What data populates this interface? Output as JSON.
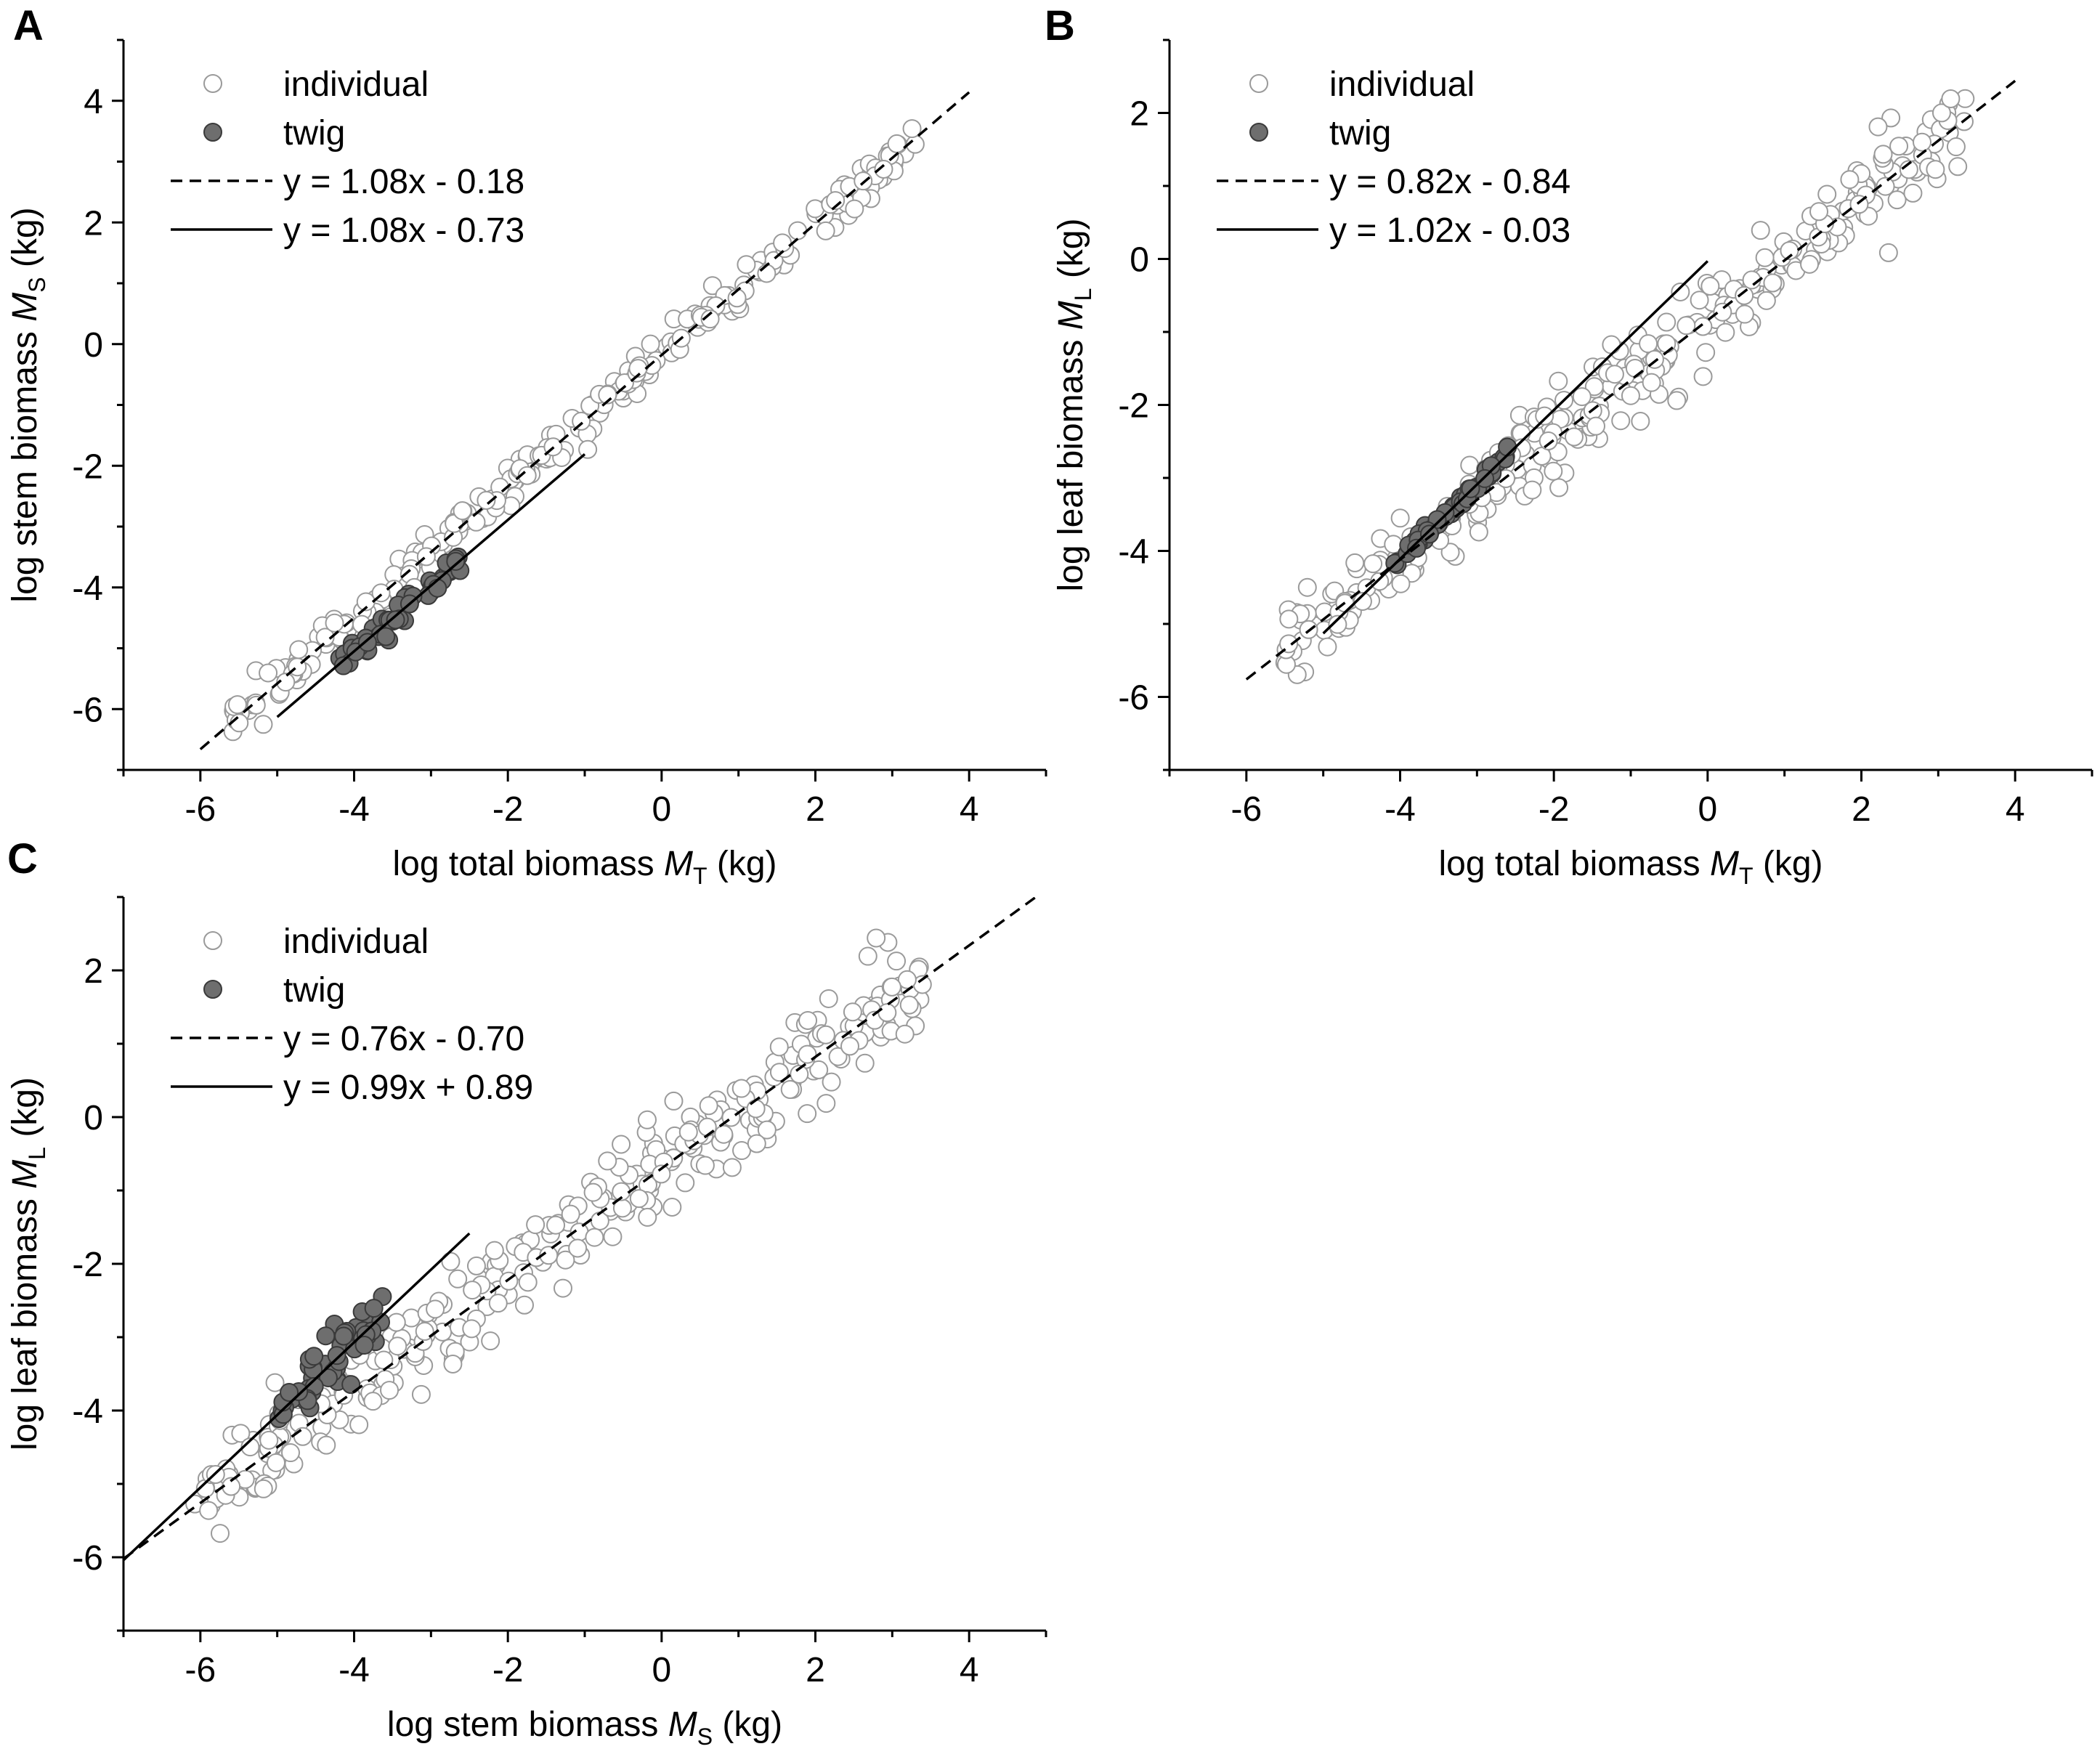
{
  "chart_data": [
    {
      "id": "A",
      "type": "scatter",
      "panel_label": "A",
      "xlabel": {
        "main": "log total biomass ",
        "var": "M",
        "sub": "T",
        "unit": " (kg)"
      },
      "ylabel": {
        "main": "log stem biomass ",
        "var": "M",
        "sub": "S",
        "unit": " (kg)"
      },
      "xlim": [
        -7,
        5
      ],
      "ylim": [
        -7,
        5
      ],
      "xticks": [
        -6,
        -4,
        -2,
        0,
        2,
        4
      ],
      "yticks": [
        -6,
        -4,
        -2,
        0,
        2,
        4
      ],
      "legend": {
        "position": "top-left",
        "individual_label": "individual",
        "twig_label": "twig",
        "dashed_label": "y = 1.08x - 0.18",
        "solid_label": "y = 1.08x - 0.73"
      },
      "fits": {
        "dashed": {
          "slope": 1.08,
          "intercept": -0.18,
          "x_range": [
            -6,
            4
          ]
        },
        "solid": {
          "slope": 1.08,
          "intercept": -0.73,
          "x_range": [
            -5,
            -1
          ]
        }
      },
      "individual_cloud": {
        "x_range": [
          -5.6,
          3.4
        ],
        "slope": 1.08,
        "intercept": -0.18,
        "noise": 0.18,
        "count": 260
      },
      "twig_cloud": {
        "x_range": [
          -4.2,
          -2.6
        ],
        "slope": 1.08,
        "intercept": -0.73,
        "noise": 0.12,
        "count": 50
      }
    },
    {
      "id": "B",
      "type": "scatter",
      "panel_label": "B",
      "xlabel": {
        "main": "log total biomass ",
        "var": "M",
        "sub": "T",
        "unit": " (kg)"
      },
      "ylabel": {
        "main": "log leaf biomass  ",
        "var": "M",
        "sub": "L",
        "unit": " (kg)"
      },
      "xlim": [
        -7,
        5
      ],
      "ylim": [
        -7,
        3
      ],
      "xticks": [
        -6,
        -4,
        -2,
        0,
        2,
        4
      ],
      "yticks": [
        -6,
        -4,
        -2,
        0,
        2
      ],
      "legend": {
        "position": "top-left",
        "individual_label": "individual",
        "twig_label": "twig",
        "dashed_label": "y = 0.82x - 0.84",
        "solid_label": "y = 1.02x - 0.03"
      },
      "fits": {
        "dashed": {
          "slope": 0.82,
          "intercept": -0.84,
          "x_range": [
            -6,
            4
          ]
        },
        "solid": {
          "slope": 1.02,
          "intercept": -0.03,
          "x_range": [
            -5,
            0
          ]
        }
      },
      "individual_cloud": {
        "x_range": [
          -5.5,
          3.4
        ],
        "slope": 0.82,
        "intercept": -0.84,
        "noise": 0.3,
        "count": 320
      },
      "twig_cloud": {
        "x_range": [
          -4.1,
          -2.6
        ],
        "slope": 1.02,
        "intercept": -0.03,
        "noise": 0.05,
        "count": 55
      }
    },
    {
      "id": "C",
      "type": "scatter",
      "panel_label": "C",
      "xlabel": {
        "main": "log stem biomass ",
        "var": "M",
        "sub": "S",
        "unit": " (kg)"
      },
      "ylabel": {
        "main": "log leaf biomass ",
        "var": "M",
        "sub": "L",
        "unit": " (kg)"
      },
      "xlim": [
        -7,
        5
      ],
      "ylim": [
        -7,
        3
      ],
      "xticks": [
        -6,
        -4,
        -2,
        0,
        2,
        4
      ],
      "yticks": [
        -6,
        -4,
        -2,
        0,
        2
      ],
      "legend": {
        "position": "top-left",
        "individual_label": "individual",
        "twig_label": "twig",
        "dashed_label": "y = 0.76x - 0.70",
        "solid_label": "y = 0.99x + 0.89"
      },
      "fits": {
        "dashed": {
          "slope": 0.76,
          "intercept": -0.7,
          "x_range": [
            -7,
            5
          ]
        },
        "solid": {
          "slope": 0.99,
          "intercept": 0.89,
          "x_range": [
            -7,
            -2.5
          ]
        }
      },
      "individual_cloud": {
        "x_range": [
          -6.1,
          3.4
        ],
        "slope": 0.76,
        "intercept": -0.7,
        "noise": 0.33,
        "count": 320
      },
      "twig_cloud": {
        "x_range": [
          -5.0,
          -3.6
        ],
        "slope": 0.99,
        "intercept": 0.89,
        "noise": 0.2,
        "count": 55
      }
    }
  ]
}
